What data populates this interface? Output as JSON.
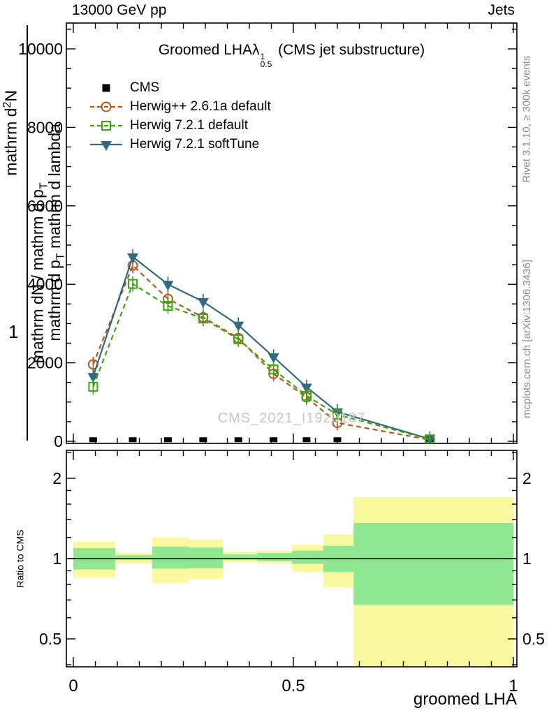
{
  "header": {
    "left": "13000 GeV pp",
    "right": "Jets"
  },
  "plot_title": {
    "text": "Groomed LHA",
    "lambda": "λ",
    "lambda_sup": "1",
    "lambda_sub": "0.5",
    "suffix": "(CMS jet substructure)"
  },
  "watermark": "CMS_2021_I1920187",
  "side_notes": {
    "top": "Rivet 3.1.10, ≥ 300k events",
    "bottom": "mcplots.cern.ch [arXiv:1306.3436]"
  },
  "y_axis_fragments": {
    "one": "1",
    "d2n_pre": "mathrm d",
    "d2n_sup": "2",
    "d2n_post": "N",
    "den1_pre": "mathrm dN / mathrm d p",
    "den1_sub": "T",
    "den2_pre": "mathrm d p",
    "den2_sub": "T",
    "den2_post": " mathrm d lambda"
  },
  "ratio_label": "Ratio to CMS",
  "x_axis_label": "groomed LHA",
  "legend": [
    {
      "label": "CMS",
      "marker": "filled-square",
      "line": "none",
      "color": "#000000"
    },
    {
      "label": "Herwig++ 2.6.1a default",
      "marker": "open-circle",
      "line": "dashed",
      "color": "#b25a1b"
    },
    {
      "label": "Herwig 7.2.1 default",
      "marker": "open-square",
      "line": "dashed",
      "color": "#3fa30f"
    },
    {
      "label": "Herwig 7.2.1 softTune",
      "marker": "filled-triangle-down",
      "line": "solid",
      "color": "#31697f"
    }
  ],
  "chart_data": {
    "type": "line",
    "title": "Groomed LHA λ^1_0.5 (CMS jet substructure)",
    "xlabel": "groomed LHA",
    "ylabel": "1 / (mathrm dN / mathrm d p_T) · mathrm d²N / (mathrm d p_T mathrm d lambda) (broken LaTeX rendered literally)",
    "xlim": [
      -0.016,
      1.008
    ],
    "ylim": [
      0,
      10700
    ],
    "grid": false,
    "legend_position": "top-left",
    "xticks": [
      0,
      0.5,
      1
    ],
    "xtick_labels": [
      "0",
      "0.5",
      "1"
    ],
    "x_minor_step": 0.05,
    "yticks": [
      0,
      2000,
      4000,
      6000,
      8000,
      10000
    ],
    "ytick_labels": [
      "0",
      "2000",
      "4000",
      "6000",
      "8000",
      "10000"
    ],
    "y_minor_step": 500,
    "x": [
      0.045,
      0.135,
      0.215,
      0.295,
      0.375,
      0.455,
      0.53,
      0.6,
      0.81
    ],
    "series": [
      {
        "name": "CMS",
        "marker": "filled-square",
        "line": "none",
        "color": "#000000",
        "values": [
          40,
          40,
          40,
          40,
          40,
          40,
          40,
          40,
          40
        ]
      },
      {
        "name": "Herwig++ 2.6.1a default",
        "marker": "open-circle",
        "line": "dashed",
        "color": "#b25a1b",
        "values": [
          1960,
          4480,
          3630,
          3160,
          2630,
          1720,
          1120,
          470,
          40
        ]
      },
      {
        "name": "Herwig 7.2.1 softTune",
        "marker": "filled-triangle-down",
        "line": "solid",
        "color": "#31697f",
        "values": [
          1650,
          4700,
          4000,
          3560,
          2960,
          2150,
          1380,
          750,
          60
        ]
      },
      {
        "name": "Herwig 7.2.1 default",
        "marker": "open-square",
        "line": "dashed",
        "color": "#3fa30f",
        "values": [
          1390,
          4010,
          3450,
          3130,
          2600,
          1830,
          1160,
          680,
          50
        ]
      }
    ],
    "ratio": {
      "ylabel": "Ratio to CMS",
      "scale": "log",
      "ylim": [
        0.39,
        2.55
      ],
      "yticks": [
        0.5,
        1,
        2
      ],
      "ytick_labels": [
        "0.5",
        "1",
        "2"
      ],
      "y_minor": [
        0.4,
        0.6,
        0.7,
        0.8,
        0.9,
        1.2,
        1.4,
        1.6,
        1.8,
        2.5
      ],
      "reference_line": 1.0,
      "bin_edges": [
        0,
        0.095,
        0.179,
        0.262,
        0.34,
        0.418,
        0.497,
        0.568,
        0.637,
        1.0
      ],
      "yellow_band": [
        [
          0.85,
          1.16
        ],
        [
          0.957,
          1.053
        ],
        [
          0.81,
          1.2
        ],
        [
          0.84,
          1.18
        ],
        [
          0.97,
          1.06
        ],
        [
          0.96,
          1.07
        ],
        [
          0.89,
          1.127
        ],
        [
          0.78,
          1.23
        ],
        [
          0.38,
          1.7
        ]
      ],
      "green_band": [
        [
          0.91,
          1.095
        ],
        [
          0.99,
          1.03
        ],
        [
          0.917,
          1.11
        ],
        [
          0.92,
          1.1
        ],
        [
          0.99,
          1.036
        ],
        [
          0.98,
          1.05
        ],
        [
          0.955,
          1.07
        ],
        [
          0.89,
          1.116
        ],
        [
          0.67,
          1.36
        ]
      ]
    },
    "colors": {
      "yellow_band": "#f9f9a0",
      "green_band": "#90e890",
      "axis": "#000000",
      "watermark": "#c6c6c6"
    }
  }
}
